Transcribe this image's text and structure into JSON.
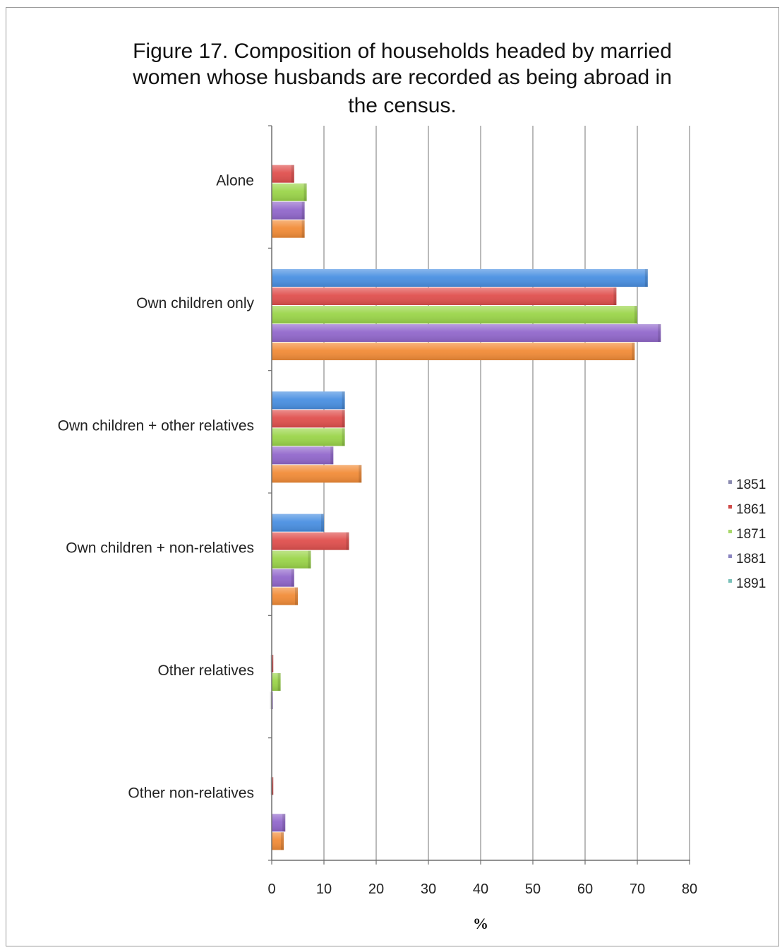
{
  "chart_data": {
    "type": "bar",
    "orientation": "horizontal",
    "title_lines": [
      "Figure 17. Composition of households headed by married",
      "women whose husbands are recorded as being abroad in",
      "the census."
    ],
    "xlabel": "%",
    "ylabel": "",
    "xlim": [
      0,
      80
    ],
    "xticks": [
      "0",
      "10",
      "20",
      "30",
      "40",
      "50",
      "60",
      "70",
      "80"
    ],
    "grid": true,
    "legend_position": "right",
    "categories": [
      "Alone",
      "Own children only",
      "Own children + other relatives",
      "Own children + non-relatives",
      "Other relatives",
      "Other non-relatives"
    ],
    "series": [
      {
        "name": "1851",
        "color": "#4a90e2",
        "legend_marker_color": "#8a8ab0",
        "values": [
          0,
          72,
          14,
          10,
          0,
          0
        ]
      },
      {
        "name": "1861",
        "color": "#e0504e",
        "legend_marker_color": "#d04a48",
        "values": [
          4.3,
          66,
          14,
          14.8,
          0.3,
          0.3
        ]
      },
      {
        "name": "1871",
        "color": "#9bd54a",
        "legend_marker_color": "#a8d86a",
        "values": [
          6.7,
          70,
          14,
          7.5,
          1.7,
          0
        ]
      },
      {
        "name": "1881",
        "color": "#9268cc",
        "legend_marker_color": "#8a84c0",
        "values": [
          6.3,
          74.5,
          11.8,
          4.3,
          0.2,
          2.6
        ]
      },
      {
        "name": "1891",
        "color": "#f28c38",
        "legend_marker_color": "#78c0b8",
        "values": [
          6.3,
          69.5,
          17.2,
          5,
          0,
          2.3
        ]
      }
    ]
  }
}
